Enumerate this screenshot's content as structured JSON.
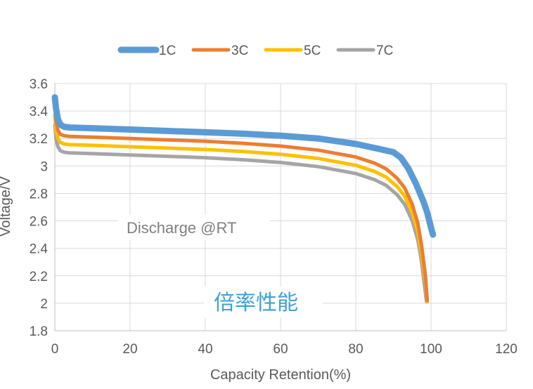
{
  "chart_data": {
    "type": "line",
    "xlabel": "Capacity Retention(%)",
    "ylabel": "Voltage/V",
    "xlim": [
      0,
      120
    ],
    "ylim": [
      1.8,
      3.6
    ],
    "xticks": [
      "0",
      "20",
      "40",
      "60",
      "80",
      "100",
      "120"
    ],
    "yticks": [
      "1.8",
      "2",
      "2.2",
      "2.4",
      "2.6",
      "2.8",
      "3",
      "3.2",
      "3.4",
      "3.6"
    ],
    "grid": true,
    "legend_position": "top",
    "annotations": [
      "Discharge @RT",
      "倍率性能"
    ],
    "series": [
      {
        "name": "1C",
        "color": "#5b9bd5",
        "x": [
          0,
          0.3,
          0.8,
          1.5,
          2.5,
          4,
          10,
          20,
          30,
          40,
          50,
          60,
          70,
          80,
          86,
          90,
          92,
          94,
          96,
          98,
          99,
          100,
          100.5
        ],
        "y": [
          3.5,
          3.42,
          3.34,
          3.3,
          3.285,
          3.28,
          3.275,
          3.265,
          3.255,
          3.245,
          3.235,
          3.22,
          3.2,
          3.16,
          3.125,
          3.1,
          3.06,
          2.98,
          2.87,
          2.74,
          2.66,
          2.55,
          2.5
        ]
      },
      {
        "name": "3C",
        "color": "#ed7d31",
        "x": [
          0,
          0.3,
          0.8,
          1.5,
          2.5,
          4,
          10,
          20,
          30,
          40,
          50,
          60,
          70,
          80,
          85,
          88,
          91,
          93,
          95,
          96.5,
          97.5,
          98.5,
          99
        ],
        "y": [
          3.43,
          3.33,
          3.26,
          3.23,
          3.22,
          3.215,
          3.21,
          3.2,
          3.19,
          3.18,
          3.165,
          3.145,
          3.115,
          3.065,
          3.02,
          2.98,
          2.91,
          2.84,
          2.72,
          2.58,
          2.42,
          2.2,
          2.02
        ]
      },
      {
        "name": "5C",
        "color": "#ffc000",
        "x": [
          0,
          0.3,
          0.8,
          1.5,
          2.5,
          4,
          10,
          20,
          30,
          40,
          50,
          60,
          70,
          80,
          85,
          88,
          91,
          93,
          95,
          96.5,
          97.5,
          98.5,
          99
        ],
        "y": [
          3.37,
          3.27,
          3.2,
          3.17,
          3.16,
          3.155,
          3.15,
          3.14,
          3.13,
          3.12,
          3.105,
          3.085,
          3.055,
          3.005,
          2.96,
          2.92,
          2.85,
          2.78,
          2.66,
          2.52,
          2.36,
          2.16,
          2.01
        ]
      },
      {
        "name": "7C",
        "color": "#a5a5a5",
        "x": [
          0,
          0.3,
          0.8,
          1.5,
          2.5,
          4,
          10,
          20,
          30,
          40,
          50,
          60,
          70,
          80,
          85,
          88,
          91,
          93,
          95,
          96.5,
          97.5,
          98.2,
          98.8
        ],
        "y": [
          3.3,
          3.2,
          3.14,
          3.11,
          3.1,
          3.095,
          3.09,
          3.08,
          3.07,
          3.06,
          3.045,
          3.025,
          2.995,
          2.945,
          2.9,
          2.86,
          2.79,
          2.72,
          2.6,
          2.46,
          2.3,
          2.14,
          2.01
        ]
      }
    ]
  }
}
